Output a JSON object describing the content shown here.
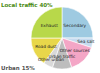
{
  "chart_data": {
    "type": "pie",
    "categories": [
      "Secondary",
      "Sea salt",
      "Other sources",
      "Urban traffic",
      "Other urban",
      "Road dust",
      "Exhaust"
    ],
    "values": [
      25,
      5,
      15,
      10,
      5,
      15,
      25
    ],
    "colors": [
      "#9ecae1",
      "#c6dbef",
      "#f4a6c6",
      "#bdbdbd",
      "#d9d9d9",
      "#e8d74a",
      "#b8d84a"
    ],
    "annotations": [
      {
        "text": "Local traffic 40%",
        "color": "#4a8a12"
      },
      {
        "text": "Urban 15%",
        "color": "#555555"
      }
    ]
  }
}
